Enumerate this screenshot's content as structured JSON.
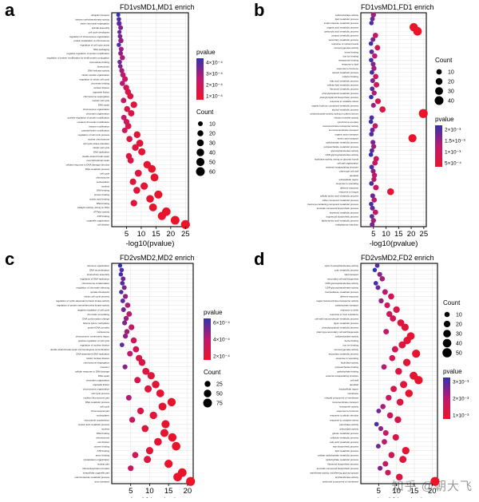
{
  "watermark": "知乎 @朝大飞",
  "chart_data": [
    {
      "letter": "a",
      "type": "scatter",
      "title": "FD1vsMD1,MD1 enrich",
      "xlabel": "-log10(pvalue)",
      "ylabel": "",
      "xticks": [
        5,
        10,
        15,
        20,
        25
      ],
      "xlim": [
        0,
        26
      ],
      "legend": {
        "pvalue_title": "pvalue",
        "pvalue_ticks": [
          "4×10⁻⁴",
          "3×10⁻⁴",
          "2×10⁻⁴",
          "1×10⁻⁴"
        ],
        "count_title": "Count",
        "count_ticks": [
          10,
          20,
          30,
          40,
          50,
          60
        ]
      },
      "terms": [
        "ubiquitin transport",
        "histone methyltransferase activity",
        "sister chromatid segregation",
        "spindle assembly",
        "cell cycle checkpoint",
        "regulation of chromosome organization",
        "protein localization to chromosome",
        "regulation of cell cycle arrest",
        "DNA packaging",
        "negative regulation of protein modification",
        "regulation of protein modification by small protein conjugation",
        "microtubule binding",
        "kinetochore",
        "DNA helicase activity",
        "mitotic spindle organization",
        "regulation of mitotic cell cycle",
        "chromatin binding",
        "nuclear division",
        "organelle fission",
        "chromosome segregation",
        "meiotic cell cycle",
        "DNA repair",
        "chromosome organization",
        "chromatin organization",
        "positive regulation of protein modification",
        "covalent chromatin modification",
        "histone modification",
        "peptidyl-lysine modification",
        "regulation of cell cycle process",
        "nuclear chromosome",
        "cell cycle phase transition",
        "mitotic cell cycle",
        "DNA replication",
        "double-strand break repair",
        "recombinational repair",
        "cellular response to DNA damage stimulus",
        "DNA metabolic process",
        "cell cycle",
        "chromosome",
        "nucleoplasm",
        "nucleus",
        "DNA binding",
        "protein binding",
        "nucleic acid binding",
        "RNA binding",
        "catalytic activity, acting on DNA",
        "ATPase activity",
        "ATP binding",
        "organelle organization",
        "cell division"
      ],
      "x": [
        2.2,
        2.4,
        2.5,
        3.0,
        2.6,
        2.8,
        3.1,
        2.4,
        3.2,
        3.0,
        3.6,
        2.7,
        2.9,
        3.4,
        3.8,
        4.5,
        3.6,
        4.9,
        5.5,
        6.3,
        4.0,
        7.5,
        5.2,
        6.6,
        4.1,
        5.0,
        5.6,
        4.4,
        8.6,
        6.0,
        9.5,
        8.0,
        10.2,
        5.8,
        6.4,
        12.0,
        13.6,
        9.0,
        14.5,
        7.2,
        11.0,
        8.5,
        15.8,
        13.0,
        7.5,
        14.0,
        18.5,
        17.0,
        21.5,
        25.0
      ],
      "count": [
        5,
        8,
        12,
        10,
        6,
        9,
        14,
        7,
        11,
        10,
        13,
        8,
        9,
        12,
        15,
        18,
        14,
        20,
        22,
        24,
        16,
        28,
        21,
        25,
        16,
        19,
        23,
        17,
        30,
        22,
        34,
        29,
        36,
        21,
        24,
        40,
        44,
        33,
        46,
        27,
        38,
        31,
        50,
        42,
        28,
        45,
        56,
        52,
        60,
        64
      ],
      "pval": [
        0.00045,
        0.0004,
        0.00038,
        0.00032,
        0.00036,
        0.00034,
        0.0003,
        0.00039,
        0.00028,
        0.0003,
        0.00025,
        0.00035,
        0.00033,
        0.00027,
        0.00022,
        0.00018,
        0.00024,
        0.00015,
        0.00012,
        0.0001,
        0.0002,
        8e-05,
        0.00012,
        9e-05,
        0.0002,
        0.00014,
        0.00011,
        0.00017,
        6e-05,
        0.0001,
        5e-05,
        7e-05,
        4e-05,
        0.0001,
        9e-05,
        3e-05,
        2e-05,
        6e-05,
        2e-05,
        8e-05,
        4e-05,
        6e-05,
        1e-05,
        3e-05,
        7e-05,
        2e-05,
        1e-05,
        1e-05,
        5e-06,
        2e-06
      ]
    },
    {
      "letter": "b",
      "type": "scatter",
      "title": "FD1vsMD1,FD1 enrich",
      "xlabel": "-log10(pvalue)",
      "ylabel": "",
      "xticks": [
        5,
        10,
        15,
        20,
        25
      ],
      "xlim": [
        0,
        26
      ],
      "legend": {
        "pvalue_title": "pvalue",
        "pvalue_ticks": [
          "2×10⁻³",
          "1.5×10⁻³",
          "1×10⁻³",
          "5×10⁻⁴"
        ],
        "count_title": "Count",
        "count_ticks": [
          10,
          20,
          30,
          40
        ]
      },
      "terms": [
        "oxidoreductase activity",
        "lipid metabolic process",
        "small molecule metabolic process",
        "organic acid metabolic process",
        "carboxylic acid metabolic process",
        "oxoacid metabolic process",
        "secondary metabolic process",
        "response to nutrient levels",
        "monooxygenase activity",
        "heme binding",
        "iron ion binding",
        "tetrapyrrole binding",
        "response to lipid",
        "response to hormone",
        "steroid metabolic process",
        "cofactor binding",
        "fatty acid metabolic process",
        "cellular lipid metabolic process",
        "flavonoid metabolic process",
        "phenylpropanoid metabolic process",
        "phenylpropanoid biosynthetic process",
        "response to oxidative stress",
        "organic hydroxy compound metabolic process",
        "alcohol metabolic process",
        "oxidoreductase activity, acting on paired donors",
        "electron transfer activity",
        "cytochrome complex",
        "transmembrane transporter activity",
        "ion transmembrane transport",
        "organic anion transport",
        "amino acid transport",
        "carbohydrate metabolic process",
        "polysaccharide metabolic process",
        "glucosyltransferase activity",
        "UDP-glycosyltransferase activity",
        "hydrolase activity, acting on glycosyl bonds",
        "cell wall organization",
        "external encapsulating structure",
        "plant-type cell wall",
        "apoplast",
        "extracellular region",
        "response to wounding",
        "defense response",
        "response to fungus",
        "cellular amino acid metabolic process",
        "sulfur compound metabolic process",
        "benzene-containing compound metabolic process",
        "aromatic compound biosynthetic process",
        "terpenoid metabolic process",
        "isoprenoid biosynthetic process",
        "alpha-amino acid metabolic process",
        "endoplasmic reticulum"
      ],
      "x": [
        5.0,
        4.6,
        4.2,
        21.0,
        22.5,
        5.8,
        4.8,
        4.0,
        6.6,
        4.3,
        5.5,
        4.1,
        4.9,
        5.2,
        4.4,
        5.9,
        4.7,
        6.2,
        4.5,
        5.3,
        4.1,
        6.8,
        5.0,
        8.6,
        24.8,
        4.3,
        4.0,
        5.7,
        4.6,
        4.2,
        20.5,
        4.8,
        5.1,
        4.4,
        4.0,
        6.1,
        5.6,
        4.3,
        4.9,
        5.4,
        5.2,
        4.2,
        6.0,
        11.8,
        4.7,
        5.3,
        4.1,
        4.6,
        5.8,
        4.4,
        5.0,
        4.5
      ],
      "count": [
        8,
        6,
        5,
        35,
        38,
        10,
        7,
        5,
        11,
        6,
        9,
        5,
        7,
        8,
        6,
        10,
        7,
        11,
        6,
        8,
        5,
        12,
        7,
        15,
        42,
        6,
        5,
        10,
        7,
        6,
        33,
        7,
        8,
        6,
        5,
        11,
        10,
        6,
        7,
        9,
        8,
        6,
        11,
        20,
        7,
        9,
        5,
        7,
        10,
        6,
        8,
        7
      ],
      "pval": [
        0.0012,
        0.0016,
        0.0018,
        4e-05,
        3e-05,
        0.0009,
        0.0015,
        0.0019,
        0.0007,
        0.0017,
        0.001,
        0.0019,
        0.0014,
        0.0012,
        0.0018,
        0.0008,
        0.0015,
        0.0007,
        0.0017,
        0.0011,
        0.002,
        0.0006,
        0.0013,
        0.0004,
        2e-05,
        0.0018,
        0.002,
        0.0009,
        0.0016,
        0.0018,
        5e-05,
        0.0015,
        0.0012,
        0.0017,
        0.002,
        0.0008,
        0.0009,
        0.0018,
        0.0014,
        0.001,
        0.0011,
        0.0018,
        0.0008,
        0.0002,
        0.0016,
        0.0011,
        0.0019,
        0.0016,
        0.0009,
        0.0017,
        0.0012,
        0.0015
      ]
    },
    {
      "letter": "c",
      "type": "scatter",
      "title": "FD2vsMD2,MD2 enrich",
      "xlabel": "-log10(pvalue)",
      "ylabel": "",
      "xticks": [
        5,
        10,
        15,
        20
      ],
      "xlim": [
        0,
        21.5
      ],
      "legend": {
        "pvalue_title": "pvalue",
        "pvalue_ticks": [
          "6×10⁻⁴",
          "4×10⁻⁴",
          "2×10⁻⁴"
        ],
        "count_title": "Count",
        "count_ticks": [
          25,
          50,
          75
        ]
      },
      "terms": [
        "telomere organization",
        "DNA recombination",
        "kinetochore assembly",
        "regulation of DNA replication",
        "chromosome condensation",
        "regulation of chromatin silencing",
        "spindle checkpoint",
        "mitotic cell cycle process",
        "regulation of cyclin-dependent protein kinase activity",
        "regulation of protein serine/threonine kinase activity",
        "negative regulation of cell cycle",
        "chromatin remodeling",
        "DNA conformation change",
        "histone lysine methylation",
        "protein-DNA complex",
        "nucleosome",
        "chromosome, centromeric region",
        "positive regulation of cell cycle",
        "regulation of nuclear division",
        "double-strand break repair via homologous recombination",
        "DNA-dependent DNA replication",
        "mitotic nuclear division",
        "chromosome segregation",
        "meiosis I",
        "cellular response to DNA damage",
        "DNA repair",
        "chromatin organization",
        "organelle fission",
        "chromosome organization",
        "cell cycle process",
        "nuclear chromosome part",
        "DNA metabolic process",
        "cell cycle",
        "chromosomal part",
        "nucleoplasm",
        "microtubule cytoskeleton",
        "nucleic acid metabolic process",
        "nucleus",
        "DNA binding",
        "chromosome",
        "cell division",
        "protein binding",
        "ATP binding",
        "anion binding",
        "cytoskeleton organization",
        "nuclear part",
        "ribonucleoprotein complex",
        "intracellular organelle part",
        "macromolecule metabolic process",
        "axon transport"
      ],
      "x": [
        2.2,
        2.6,
        2.4,
        3.0,
        2.8,
        3.3,
        2.5,
        3.6,
        2.9,
        4.2,
        3.1,
        4.6,
        3.8,
        3.4,
        5.2,
        4.0,
        3.6,
        5.8,
        2.7,
        6.4,
        4.8,
        7.2,
        8.0,
        3.5,
        9.0,
        10.4,
        6.8,
        11.6,
        9.6,
        12.8,
        4.5,
        15.8,
        13.4,
        7.6,
        11.0,
        5.4,
        14.2,
        8.8,
        13.9,
        16.0,
        12.2,
        17.0,
        10.0,
        6.2,
        9.4,
        15.0,
        5.0,
        18.6,
        17.4,
        20.8
      ],
      "count": [
        8,
        10,
        9,
        12,
        11,
        13,
        9,
        15,
        12,
        18,
        13,
        20,
        16,
        14,
        24,
        17,
        15,
        27,
        11,
        30,
        22,
        34,
        38,
        14,
        42,
        48,
        32,
        52,
        45,
        56,
        21,
        66,
        58,
        36,
        50,
        25,
        62,
        40,
        60,
        68,
        54,
        70,
        46,
        29,
        44,
        64,
        23,
        74,
        72,
        80
      ],
      "pval": [
        0.0007,
        0.00062,
        0.00066,
        0.00056,
        0.0006,
        0.0005,
        0.00064,
        0.00046,
        0.00058,
        0.0004,
        0.00054,
        0.00036,
        0.00044,
        0.0005,
        0.0003,
        0.00042,
        0.00046,
        0.00026,
        0.0006,
        0.00022,
        0.00034,
        0.00018,
        0.00015,
        0.00048,
        0.00012,
        0.0001,
        0.0002,
        8e-05,
        0.00011,
        6e-05,
        0.00038,
        3e-05,
        5e-05,
        0.00016,
        9e-05,
        0.00028,
        4e-05,
        0.00013,
        4e-05,
        2e-05,
        7e-05,
        2e-05,
        0.0001,
        0.00024,
        0.00012,
        3e-05,
        0.0003,
        1e-05,
        2e-05,
        5e-06
      ]
    },
    {
      "letter": "d",
      "type": "scatter",
      "title": "FD2vsMD2,FD2 enrich",
      "xlabel": "-log10(pvalue)",
      "ylabel": "",
      "xticks": [
        5,
        10,
        15,
        20
      ],
      "xlim": [
        0,
        21.5
      ],
      "legend": {
        "pvalue_title": "pvalue",
        "pvalue_ticks": [
          "3×10⁻³",
          "2×10⁻³",
          "1×10⁻³"
        ],
        "count_title": "Count",
        "count_ticks": [
          10,
          20,
          30,
          40,
          50
        ]
      },
      "terms": [
        "xylan O-acetyltransferase activity",
        "cutin metabolic process",
        "lipid transport",
        "secondary cell wall biogenesis",
        "UDP-glucosyltransferase activity",
        "UDP-glycosyltransferase activity",
        "hemicellulose metabolic process",
        "defense response",
        "sugar transmembrane transporter activity",
        "carbohydrate transport",
        "response to chitin",
        "response to toxic substance",
        "cell wall macromolecule metabolic process",
        "lignin metabolic process",
        "phenylpropanoid metabolic process",
        "plant-type secondary cell wall biogenesis",
        "oxidoreductase activity",
        "heme binding",
        "iron ion binding",
        "monooxygenase activity",
        "secondary metabolic process",
        "response to wounding",
        "hydrolase activity",
        "polysaccharide binding",
        "carbohydrate binding",
        "external encapsulating structure",
        "cell wall",
        "apoplast",
        "extracellular region",
        "membrane",
        "integral component of membrane",
        "transmembrane transport",
        "transporter activity",
        "response to hormone",
        "response to abiotic stimulus",
        "response to oxidative stress",
        "peroxidase activity",
        "antioxidant activity",
        "glucan metabolic process",
        "cellulose metabolic process",
        "fatty acid metabolic process",
        "wax biosynthetic process",
        "lipid metabolic process",
        "cellular carbohydrate metabolic process",
        "carbohydrate metabolic process",
        "flavonoid biosynthetic process",
        "aromatic compound biosynthetic process",
        "transferase activity, transferring glycosyl groups",
        "acyltransferase activity",
        "anchored component of membrane"
      ],
      "x": [
        4.6,
        3.9,
        5.3,
        6.0,
        4.2,
        4.8,
        6.8,
        8.5,
        5.7,
        7.4,
        10.0,
        8.0,
        9.0,
        11.2,
        12.4,
        7.1,
        14.0,
        13.0,
        11.6,
        9.6,
        15.5,
        8.8,
        12.9,
        6.5,
        10.6,
        14.8,
        16.2,
        12.0,
        9.2,
        13.5,
        7.8,
        11.0,
        6.2,
        5.0,
        8.2,
        10.4,
        4.4,
        5.6,
        7.0,
        9.8,
        6.6,
        4.9,
        12.6,
        8.6,
        11.8,
        6.9,
        5.4,
        7.6,
        10.8,
        20.8
      ],
      "count": [
        6,
        5,
        8,
        10,
        6,
        7,
        12,
        16,
        9,
        13,
        20,
        15,
        17,
        24,
        27,
        12,
        32,
        29,
        25,
        18,
        36,
        16,
        28,
        11,
        22,
        34,
        38,
        26,
        17,
        30,
        14,
        23,
        10,
        7,
        15,
        21,
        6,
        8,
        12,
        19,
        11,
        7,
        28,
        16,
        25,
        12,
        8,
        13,
        22,
        46
      ],
      "pval": [
        0.0027,
        0.0031,
        0.0022,
        0.0019,
        0.0029,
        0.0025,
        0.0016,
        0.0011,
        0.002,
        0.0013,
        0.0008,
        0.0012,
        0.001,
        0.0006,
        0.0005,
        0.0015,
        0.0003,
        0.0004,
        0.0006,
        0.0009,
        0.0002,
        0.001,
        0.0004,
        0.0017,
        0.0007,
        0.0003,
        0.0002,
        0.0005,
        0.0009,
        0.0003,
        0.0012,
        0.0007,
        0.0018,
        0.0024,
        0.0011,
        0.0008,
        0.0028,
        0.0021,
        0.0014,
        0.0008,
        0.0016,
        0.0025,
        0.0004,
        0.001,
        0.0006,
        0.0014,
        0.0022,
        0.0013,
        0.0007,
        0.0001
      ]
    }
  ]
}
